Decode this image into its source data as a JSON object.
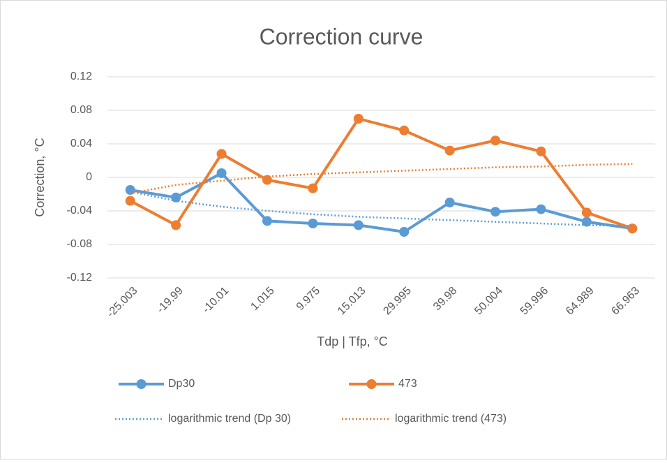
{
  "chart_data": {
    "type": "line",
    "title": "Correction curve",
    "x_label": "Tdp | Tfp, °C",
    "y_label": "Correction, °C",
    "categories": [
      "-25.003",
      "-19.99",
      "-10.01",
      "1.015",
      "9.975",
      "15.013",
      "29.995",
      "39.98",
      "50.004",
      "59.996",
      "64.989",
      "66.963"
    ],
    "series": [
      {
        "name": "Dp30",
        "color": "#5b9bd5",
        "line_style": "solid",
        "marker": true,
        "values": [
          -0.015,
          -0.024,
          0.005,
          -0.052,
          -0.055,
          -0.057,
          -0.065,
          -0.03,
          -0.041,
          -0.038,
          -0.053,
          -0.061
        ]
      },
      {
        "name": "473",
        "color": "#ed7d31",
        "line_style": "solid",
        "marker": true,
        "values": [
          -0.028,
          -0.057,
          0.028,
          -0.003,
          -0.013,
          0.07,
          0.056,
          0.032,
          0.044,
          0.031,
          -0.042,
          -0.061
        ]
      },
      {
        "name": "logarithmic trend (Dp 30)",
        "color": "#5b9bd5",
        "line_style": "dotted",
        "marker": false,
        "values": [
          -0.017,
          -0.028,
          -0.035,
          -0.04,
          -0.044,
          -0.047,
          -0.049,
          -0.051,
          -0.053,
          -0.055,
          -0.057,
          -0.058
        ]
      },
      {
        "name": "logarithmic trend (473)",
        "color": "#ed7d31",
        "line_style": "dotted",
        "marker": false,
        "values": [
          -0.019,
          -0.009,
          -0.004,
          0.001,
          0.004,
          0.006,
          0.008,
          0.01,
          0.012,
          0.013,
          0.015,
          0.016
        ]
      }
    ],
    "ylim": [
      -0.12,
      0.12
    ],
    "yticks": [
      -0.12,
      -0.08,
      -0.04,
      0,
      0.04,
      0.08,
      0.12
    ],
    "grid": true,
    "legend": "bottom"
  }
}
